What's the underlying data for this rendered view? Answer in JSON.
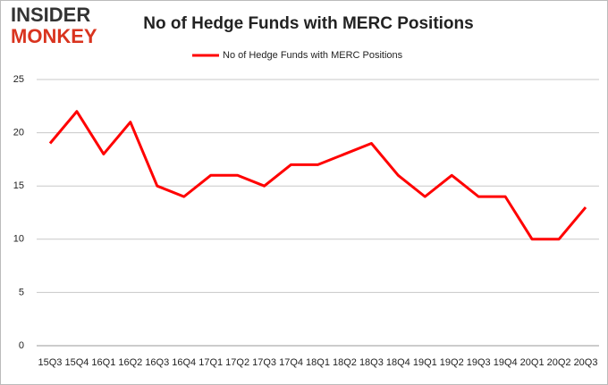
{
  "logo": {
    "line1": "INSIDER",
    "line2": "MONKEY"
  },
  "chart_data": {
    "type": "line",
    "title": "No of Hedge Funds with MERC Positions",
    "categories": [
      "15Q3",
      "15Q4",
      "16Q1",
      "16Q2",
      "16Q3",
      "16Q4",
      "17Q1",
      "17Q2",
      "17Q3",
      "17Q4",
      "18Q1",
      "18Q2",
      "18Q3",
      "18Q4",
      "19Q1",
      "19Q2",
      "19Q3",
      "19Q4",
      "20Q1",
      "20Q2",
      "20Q3"
    ],
    "series": [
      {
        "name": "No of Hedge Funds with MERC Positions",
        "color": "#ff0000",
        "values": [
          19,
          22,
          18,
          21,
          15,
          14,
          16,
          16,
          15,
          17,
          17,
          18,
          19,
          16,
          14,
          16,
          14,
          14,
          10,
          10,
          13
        ]
      }
    ],
    "ylim": [
      0,
      25
    ],
    "yticks": [
      0,
      5,
      10,
      15,
      20,
      25
    ],
    "grid": true,
    "legend": "top"
  }
}
